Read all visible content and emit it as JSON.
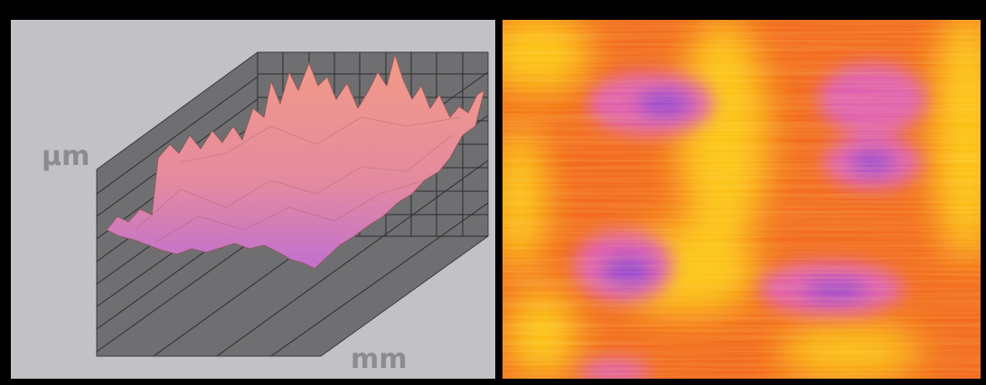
{
  "labels": {
    "y_axis": "µm",
    "x_axis": "mm"
  }
}
